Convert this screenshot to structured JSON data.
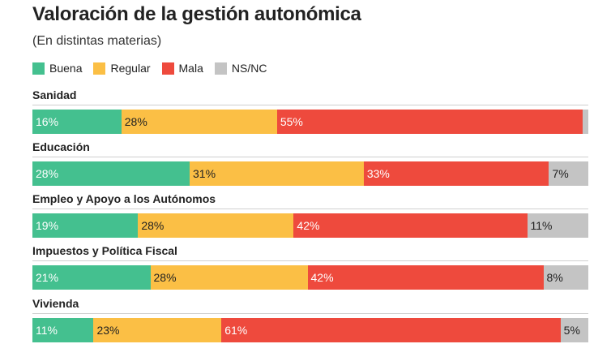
{
  "header": {
    "title": "Valoración de la gestión autonómica",
    "subtitle": "(En distintas materias)"
  },
  "colors": {
    "Buena": "#44c08f",
    "Regular": "#fbbf45",
    "Mala": "#ee4a3d",
    "NS/NC": "#c4c4c4"
  },
  "legend": {
    "items": [
      {
        "label": "Buena",
        "color": "#44c08f"
      },
      {
        "label": "Regular",
        "color": "#fbbf45"
      },
      {
        "label": "Mala",
        "color": "#ee4a3d"
      },
      {
        "label": "NS/NC",
        "color": "#c4c4c4"
      }
    ]
  },
  "chart_data": {
    "type": "bar",
    "orientation": "horizontal",
    "stacked": true,
    "title": "Valoración de la gestión autonómica",
    "subtitle": "(En distintas materias)",
    "legend_placement": "top-left",
    "grid": false,
    "categories": [
      "Sanidad",
      "Educación",
      "Empleo y Apoyo a los Autónomos",
      "Impuestos y Política Fiscal",
      "Vivienda"
    ],
    "series": [
      {
        "name": "Buena",
        "values": [
          16,
          28,
          19,
          21,
          11
        ],
        "labels": [
          "16%",
          "28%",
          "19%",
          "21%",
          "11%"
        ]
      },
      {
        "name": "Regular",
        "values": [
          28,
          31,
          28,
          28,
          23
        ],
        "labels": [
          "28%",
          "31%",
          "28%",
          "28%",
          "23%"
        ]
      },
      {
        "name": "Mala",
        "values": [
          55,
          33,
          42,
          42,
          61
        ],
        "labels": [
          "55%",
          "33%",
          "42%",
          "42%",
          "61%"
        ]
      },
      {
        "name": "NS/NC",
        "values": [
          1,
          7,
          11,
          8,
          5
        ],
        "labels": [
          "",
          "7%",
          "11%",
          "8%",
          "5%"
        ]
      }
    ]
  }
}
